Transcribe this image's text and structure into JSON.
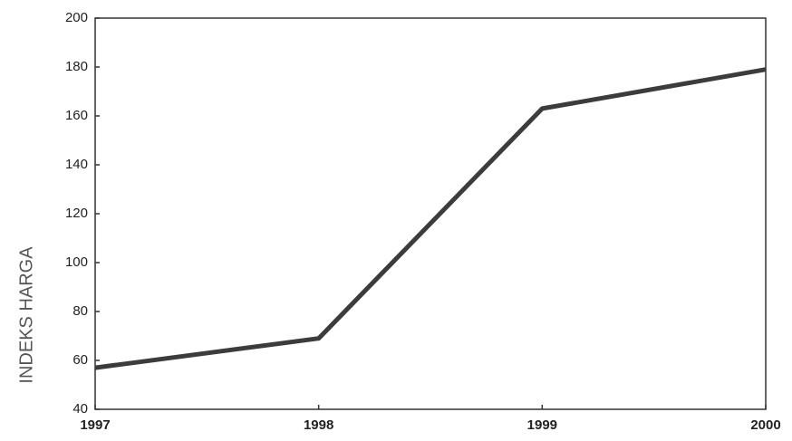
{
  "chart_data": {
    "type": "line",
    "y_label": "INDEKS HARGA",
    "x": [
      1997,
      1998,
      1999,
      2000
    ],
    "series": [
      {
        "name": null,
        "color": "#3c3c3c",
        "values": [
          57,
          69,
          163,
          179
        ]
      }
    ],
    "xlim": [
      1997,
      2000
    ],
    "xticks": [
      1997,
      1998,
      1999,
      2000
    ],
    "ylim": [
      40,
      200
    ],
    "yticks": [
      40,
      60,
      80,
      100,
      120,
      140,
      160,
      180,
      200
    ],
    "grid": false
  }
}
